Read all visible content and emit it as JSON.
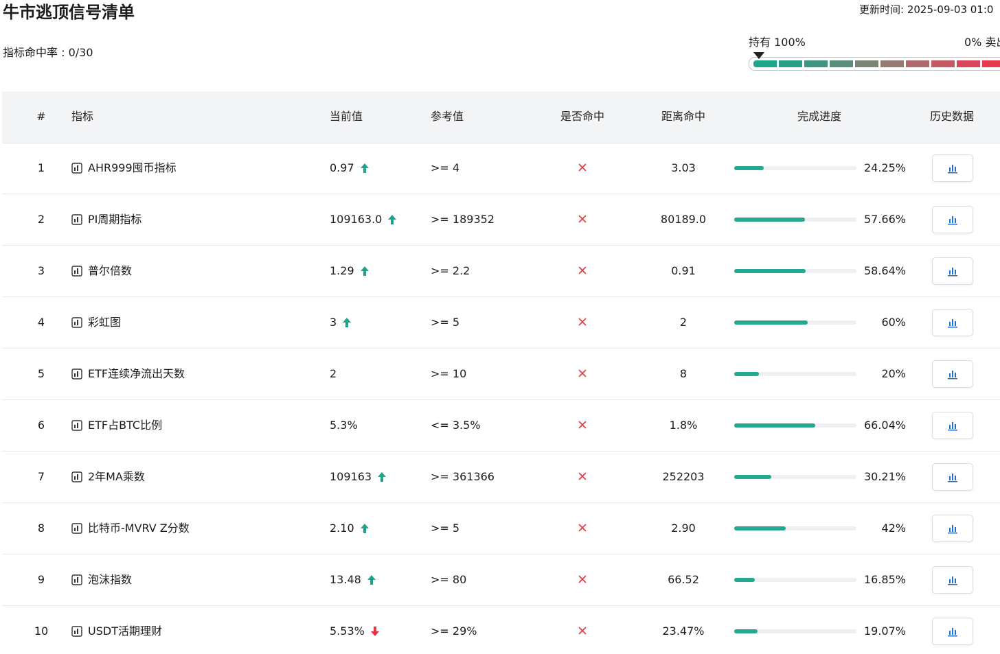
{
  "header": {
    "title": "牛市逃顶信号清单",
    "update_time": "更新时间: 2025-09-03 01:0",
    "hit_rate": "指标命中率 : 0/30",
    "gauge_left": "持有 100%",
    "gauge_right": "0% 卖出"
  },
  "table": {
    "columns": [
      "#",
      "指标",
      "当前值",
      "参考值",
      "是否命中",
      "距离命中",
      "完成进度",
      "历史数据"
    ],
    "rows": [
      {
        "index": 1,
        "name": "AHR999囤币指标",
        "current": "0.97",
        "trend": "up",
        "reference": ">= 4",
        "distance": "3.03",
        "progress": "24.25%"
      },
      {
        "index": 2,
        "name": "PI周期指标",
        "current": "109163.0",
        "trend": "up",
        "reference": ">= 189352",
        "distance": "80189.0",
        "progress": "57.66%"
      },
      {
        "index": 3,
        "name": "普尔倍数",
        "current": "1.29",
        "trend": "up",
        "reference": ">= 2.2",
        "distance": "0.91",
        "progress": "58.64%"
      },
      {
        "index": 4,
        "name": "彩虹图",
        "current": "3",
        "trend": "up",
        "reference": ">= 5",
        "distance": "2",
        "progress": "60%"
      },
      {
        "index": 5,
        "name": "ETF连续净流出天数",
        "current": "2",
        "trend": null,
        "reference": ">= 10",
        "distance": "8",
        "progress": "20%"
      },
      {
        "index": 6,
        "name": "ETF占BTC比例",
        "current": "5.3%",
        "trend": null,
        "reference": "<= 3.5%",
        "distance": "1.8%",
        "progress": "66.04%"
      },
      {
        "index": 7,
        "name": "2年MA乘数",
        "current": "109163",
        "trend": "up",
        "reference": ">= 361366",
        "distance": "252203",
        "progress": "30.21%"
      },
      {
        "index": 8,
        "name": "比特币-MVRV Z分数",
        "current": "2.10",
        "trend": "up",
        "reference": ">= 5",
        "distance": "2.90",
        "progress": "42%"
      },
      {
        "index": 9,
        "name": "泡沫指数",
        "current": "13.48",
        "trend": "up",
        "reference": ">= 80",
        "distance": "66.52",
        "progress": "16.85%"
      },
      {
        "index": 10,
        "name": "USDT活期理财",
        "current": "5.53%",
        "trend": "down",
        "reference": ">= 29%",
        "distance": "23.47%",
        "progress": "19.07%"
      }
    ]
  }
}
